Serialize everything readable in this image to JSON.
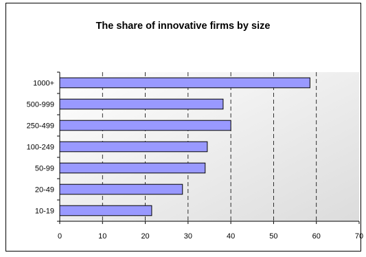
{
  "chart_data": {
    "type": "bar",
    "orientation": "horizontal",
    "title": "The share of innovative firms by size",
    "categories": [
      "10-19",
      "20-49",
      "50-99",
      "100-249",
      "250-499",
      "500-999",
      "1000+"
    ],
    "values": [
      21.5,
      28.7,
      34.0,
      34.5,
      40.0,
      38.2,
      58.5
    ],
    "xlim": [
      0,
      70
    ],
    "xticks": [
      "0",
      "10",
      "20",
      "30",
      "40",
      "50",
      "60",
      "70"
    ],
    "xlabel": "",
    "ylabel": "",
    "grid": "vertical dashed",
    "legend": "none",
    "colors": {
      "bar_fill": "#9999ff",
      "bar_stroke": "#000000",
      "plot_bg_start": "#ffffff",
      "plot_bg_end": "#dcdcdc",
      "grid": "#000000"
    }
  }
}
